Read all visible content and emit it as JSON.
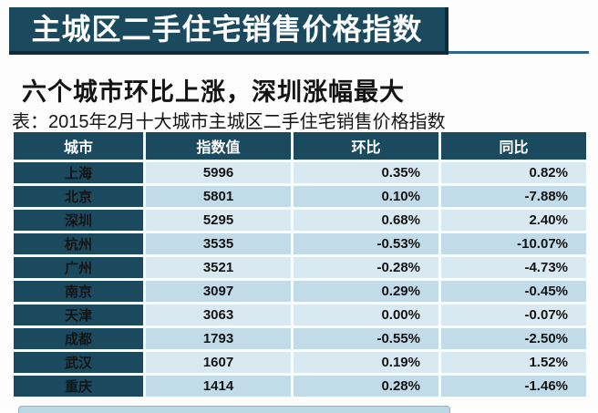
{
  "banner": {
    "title": "主城区二手住宅销售价格指数"
  },
  "headline": "六个城市环比上涨，深圳涨幅最大",
  "table_caption": "表：2015年2月十大城市主城区二手住宅销售价格指数",
  "colors": {
    "teal": "#1b4a5f",
    "banner_shadow": "#0d2c3d",
    "banner_rule": "#2e6884",
    "row_light": "#d9e9f2",
    "row_dark": "#c2dbe8",
    "negative_red": "#ae2a30",
    "text_ink": "#141414",
    "bottom_bar_blue": "#bbd8e6"
  },
  "chart_data": {
    "type": "table",
    "title": "2015年2月十大城市主城区二手住宅销售价格指数",
    "columns": [
      "城市",
      "指数值",
      "环比",
      "同比"
    ],
    "rows": [
      {
        "city": "上海",
        "index": "5996",
        "mom": "0.35%",
        "yoy": "0.82%"
      },
      {
        "city": "北京",
        "index": "5801",
        "mom": "0.10%",
        "yoy": "-7.88%"
      },
      {
        "city": "深圳",
        "index": "5295",
        "mom": "0.68%",
        "yoy": "2.40%"
      },
      {
        "city": "杭州",
        "index": "3535",
        "mom": "-0.53%",
        "yoy": "-10.07%"
      },
      {
        "city": "广州",
        "index": "3521",
        "mom": "-0.28%",
        "yoy": "-4.73%"
      },
      {
        "city": "南京",
        "index": "3097",
        "mom": "0.29%",
        "yoy": "-0.45%"
      },
      {
        "city": "天津",
        "index": "3063",
        "mom": "0.00%",
        "yoy": "-0.07%"
      },
      {
        "city": "成都",
        "index": "1793",
        "mom": "-0.55%",
        "yoy": "-2.50%"
      },
      {
        "city": "武汉",
        "index": "1607",
        "mom": "0.19%",
        "yoy": "1.52%"
      },
      {
        "city": "重庆",
        "index": "1414",
        "mom": "0.28%",
        "yoy": "-1.46%"
      }
    ]
  }
}
